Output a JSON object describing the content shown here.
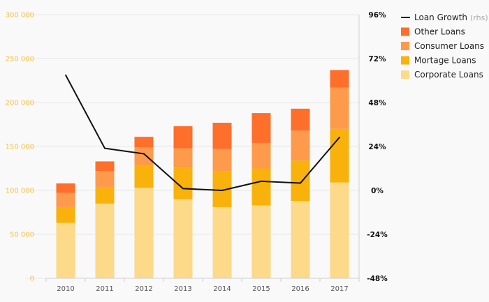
{
  "chart_data": {
    "type": "bar",
    "stacked": true,
    "categories": [
      "2010",
      "2011",
      "2012",
      "2013",
      "2014",
      "2015",
      "2016",
      "2017"
    ],
    "series": [
      {
        "name": "Corporate Loans",
        "color": "#fdd98a",
        "values": [
          63000,
          85000,
          103000,
          90000,
          81000,
          83000,
          88000,
          109000
        ]
      },
      {
        "name": "Mortage Loans",
        "color": "#f9b10b",
        "values": [
          18000,
          19000,
          25000,
          36000,
          41000,
          42000,
          46000,
          61000
        ]
      },
      {
        "name": "Consumer Loans",
        "color": "#fe9a4c",
        "values": [
          16000,
          18000,
          21000,
          22000,
          25000,
          29000,
          34000,
          47000
        ]
      },
      {
        "name": "Other Loans",
        "color": "#fe6f2b",
        "values": [
          11000,
          11000,
          12000,
          25000,
          30000,
          34000,
          25000,
          20000
        ]
      }
    ],
    "line_series": {
      "name": "Loan Growth",
      "note": "(rhs)",
      "color": "#111111",
      "axis": "right",
      "values": [
        63,
        23,
        20,
        1,
        0,
        5,
        4,
        29
      ]
    },
    "y_left": {
      "min": 0,
      "max": 300000,
      "ticks": [
        0,
        50000,
        100000,
        150000,
        200000,
        250000,
        300000
      ],
      "tick_labels": [
        "0",
        "50 000",
        "100 000",
        "150 000",
        "200 000",
        "250 000",
        "300 000"
      ]
    },
    "y_right": {
      "min": -48,
      "max": 96,
      "ticks": [
        -48,
        -24,
        0,
        24,
        48,
        72,
        96
      ],
      "tick_labels": [
        "-48%",
        "-24%",
        "0%",
        "24%",
        "48%",
        "72%",
        "96%"
      ]
    },
    "grid": true,
    "legend_position": "top-right",
    "legend_order": [
      "Loan Growth",
      "Other Loans",
      "Consumer Loans",
      "Mortage Loans",
      "Corporate Loans"
    ]
  }
}
